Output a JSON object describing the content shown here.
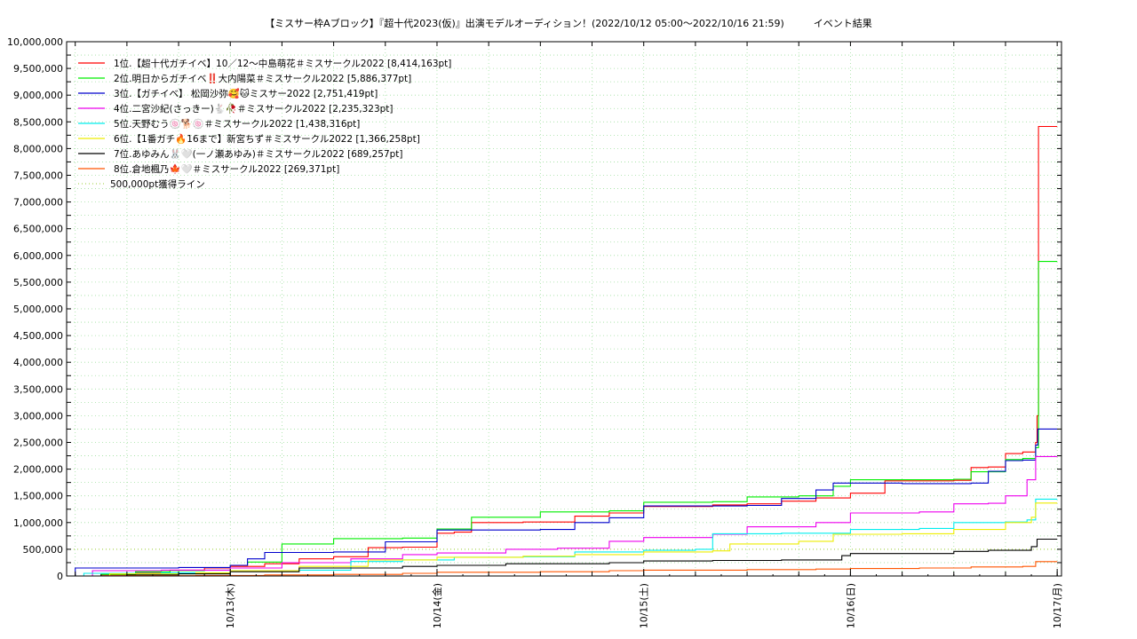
{
  "chart_data": {
    "type": "line",
    "title": "【ミスサー枠Aブロック】『超十代2023(仮)』出演モデルオーディション！(2022/10/12 05:00〜2022/10/16 21:59)　　　イベント結果",
    "xlabel": "",
    "ylabel": "",
    "grid": true,
    "legend_position": "top-left",
    "xlim": [
      "2022-10-12 05:00",
      "2022-10-17 00:30"
    ],
    "ylim": [
      0,
      10000000
    ],
    "x_ticks": [
      "10/13(木)",
      "10/14(金)",
      "10/15(土)",
      "10/16(日)",
      "10/17(月)"
    ],
    "y_ticks": [
      "0",
      "500,000",
      "1,000,000",
      "1,500,000",
      "2,000,000",
      "2,500,000",
      "3,000,000",
      "3,500,000",
      "4,000,000",
      "4,500,000",
      "5,000,000",
      "5,500,000",
      "6,000,000",
      "6,500,000",
      "7,000,000",
      "7,500,000",
      "8,000,000",
      "8,500,000",
      "9,000,000",
      "9,500,000",
      "10,000,000"
    ],
    "series": [
      {
        "name": "1位.【超十代ガチイベ】10／12〜中島萌花＃ミスサークル2022 [8,414,163pt]",
        "color": "#ff0000",
        "points": [
          [
            "10/12 05:00",
            0
          ],
          [
            "10/12 09:00",
            20000
          ],
          [
            "10/12 13:00",
            60000
          ],
          [
            "10/12 17:00",
            110000
          ],
          [
            "10/12 21:00",
            150000
          ],
          [
            "10/13 00:00",
            180000
          ],
          [
            "10/13 04:00",
            230000
          ],
          [
            "10/13 08:00",
            320000
          ],
          [
            "10/13 12:00",
            360000
          ],
          [
            "10/13 16:00",
            530000
          ],
          [
            "10/13 20:00",
            540000
          ],
          [
            "10/14 00:00",
            800000
          ],
          [
            "10/14 02:00",
            820000
          ],
          [
            "10/14 04:00",
            1000000
          ],
          [
            "10/14 10:00",
            1010000
          ],
          [
            "10/14 16:00",
            1120000
          ],
          [
            "10/14 20:00",
            1180000
          ],
          [
            "10/15 00:00",
            1300000
          ],
          [
            "10/15 08:00",
            1330000
          ],
          [
            "10/15 12:00",
            1350000
          ],
          [
            "10/15 16:00",
            1400000
          ],
          [
            "10/15 20:00",
            1460000
          ],
          [
            "10/16 00:00",
            1550000
          ],
          [
            "10/16 04:00",
            1780000
          ],
          [
            "10/16 12:00",
            1790000
          ],
          [
            "10/16 14:00",
            2030000
          ],
          [
            "10/16 16:00",
            2040000
          ],
          [
            "10/16 18:00",
            2290000
          ],
          [
            "10/16 20:00",
            2320000
          ],
          [
            "10/16 21:30",
            2500000
          ],
          [
            "10/16 21:40",
            3000000
          ],
          [
            "10/16 21:50",
            8414163
          ],
          [
            "10/17 00:00",
            8414163
          ]
        ]
      },
      {
        "name": "2位.明日からガチイベ‼️大内陽菜＃ミスサークル2022 [5,886,377pt]",
        "color": "#00ee00",
        "points": [
          [
            "10/12 05:00",
            0
          ],
          [
            "10/12 09:00",
            30000
          ],
          [
            "10/12 13:00",
            80000
          ],
          [
            "10/12 17:00",
            100000
          ],
          [
            "10/12 21:00",
            110000
          ],
          [
            "10/13 00:00",
            200000
          ],
          [
            "10/13 02:00",
            260000
          ],
          [
            "10/13 06:00",
            600000
          ],
          [
            "10/13 12:00",
            700000
          ],
          [
            "10/13 20:00",
            710000
          ],
          [
            "10/14 00:00",
            880000
          ],
          [
            "10/14 04:00",
            1100000
          ],
          [
            "10/14 12:00",
            1200000
          ],
          [
            "10/14 20:00",
            1220000
          ],
          [
            "10/15 00:00",
            1380000
          ],
          [
            "10/15 08:00",
            1390000
          ],
          [
            "10/15 12:00",
            1480000
          ],
          [
            "10/15 18:00",
            1500000
          ],
          [
            "10/15 22:00",
            1680000
          ],
          [
            "10/16 00:00",
            1800000
          ],
          [
            "10/16 12:00",
            1810000
          ],
          [
            "10/16 14:00",
            1950000
          ],
          [
            "10/16 18:00",
            2180000
          ],
          [
            "10/16 20:00",
            2200000
          ],
          [
            "10/16 21:30",
            2400000
          ],
          [
            "10/16 21:50",
            5886377
          ],
          [
            "10/17 00:00",
            5886377
          ]
        ]
      },
      {
        "name": "3位.【ガチイベ】 松岡沙弥🥰🐱ミスサー2022 [2,751,419pt]",
        "color": "#0000cc",
        "points": [
          [
            "10/12 05:00",
            0
          ],
          [
            "10/12 06:00",
            150000
          ],
          [
            "10/12 12:00",
            150000
          ],
          [
            "10/12 18:00",
            160000
          ],
          [
            "10/13 00:00",
            200000
          ],
          [
            "10/13 02:00",
            320000
          ],
          [
            "10/13 04:00",
            440000
          ],
          [
            "10/13 12:00",
            450000
          ],
          [
            "10/13 18:00",
            640000
          ],
          [
            "10/14 00:00",
            860000
          ],
          [
            "10/14 12:00",
            870000
          ],
          [
            "10/14 16:00",
            1000000
          ],
          [
            "10/14 20:00",
            1090000
          ],
          [
            "10/15 00:00",
            1310000
          ],
          [
            "10/15 12:00",
            1320000
          ],
          [
            "10/15 16:00",
            1450000
          ],
          [
            "10/15 20:00",
            1610000
          ],
          [
            "10/15 22:00",
            1740000
          ],
          [
            "10/16 06:00",
            1730000
          ],
          [
            "10/16 14:00",
            1740000
          ],
          [
            "10/16 16:00",
            1960000
          ],
          [
            "10/16 18:00",
            2160000
          ],
          [
            "10/16 20:00",
            2170000
          ],
          [
            "10/16 21:30",
            2450000
          ],
          [
            "10/16 21:45",
            2751419
          ],
          [
            "10/17 00:00",
            2751419
          ]
        ]
      },
      {
        "name": "4位.二宮沙紀(さっきー)🐇🥀＃ミスサークル2022 [2,235,323pt]",
        "color": "#ee00ee",
        "points": [
          [
            "10/12 05:00",
            0
          ],
          [
            "10/12 08:00",
            100000
          ],
          [
            "10/12 16:00",
            110000
          ],
          [
            "10/13 00:00",
            150000
          ],
          [
            "10/13 06:00",
            250000
          ],
          [
            "10/13 14:00",
            320000
          ],
          [
            "10/13 20:00",
            400000
          ],
          [
            "10/14 00:00",
            430000
          ],
          [
            "10/14 08:00",
            500000
          ],
          [
            "10/14 14:00",
            520000
          ],
          [
            "10/14 20:00",
            650000
          ],
          [
            "10/15 00:00",
            720000
          ],
          [
            "10/15 08:00",
            780000
          ],
          [
            "10/15 12:00",
            920000
          ],
          [
            "10/15 20:00",
            1000000
          ],
          [
            "10/16 00:00",
            1180000
          ],
          [
            "10/16 08:00",
            1200000
          ],
          [
            "10/16 12:00",
            1350000
          ],
          [
            "10/16 16:00",
            1360000
          ],
          [
            "10/16 18:00",
            1500000
          ],
          [
            "10/16 20:30",
            1800000
          ],
          [
            "10/16 21:30",
            2235323
          ],
          [
            "10/17 00:00",
            2235323
          ]
        ]
      },
      {
        "name": "5位.天野むう🍥🐕🍥＃ミスサークル2022 [1,438,316pt]",
        "color": "#00eeee",
        "points": [
          [
            "10/12 05:00",
            0
          ],
          [
            "10/12 07:00",
            50000
          ],
          [
            "10/12 16:00",
            60000
          ],
          [
            "10/13 00:00",
            100000
          ],
          [
            "10/13 08:00",
            110000
          ],
          [
            "10/13 14:00",
            270000
          ],
          [
            "10/13 20:00",
            300000
          ],
          [
            "10/14 02:00",
            350000
          ],
          [
            "10/14 10:00",
            360000
          ],
          [
            "10/14 16:00",
            450000
          ],
          [
            "10/15 00:00",
            480000
          ],
          [
            "10/15 06:00",
            500000
          ],
          [
            "10/15 08:00",
            790000
          ],
          [
            "10/15 16:00",
            800000
          ],
          [
            "10/16 00:00",
            870000
          ],
          [
            "10/16 08:00",
            890000
          ],
          [
            "10/16 12:00",
            1000000
          ],
          [
            "10/16 18:00",
            1010000
          ],
          [
            "10/16 20:30",
            1050000
          ],
          [
            "10/16 21:30",
            1438316
          ],
          [
            "10/17 00:00",
            1438316
          ]
        ]
      },
      {
        "name": "6位.【1番ガチ🔥16まで】新宮ちず＃ミスサークル2022 [1,366,258pt]",
        "color": "#eeee00",
        "points": [
          [
            "10/12 05:00",
            0
          ],
          [
            "10/12 10:00",
            40000
          ],
          [
            "10/12 20:00",
            60000
          ],
          [
            "10/13 00:00",
            100000
          ],
          [
            "10/13 08:00",
            180000
          ],
          [
            "10/13 16:00",
            300000
          ],
          [
            "10/14 00:00",
            350000
          ],
          [
            "10/14 10:00",
            370000
          ],
          [
            "10/14 16:00",
            400000
          ],
          [
            "10/15 00:00",
            450000
          ],
          [
            "10/15 08:00",
            470000
          ],
          [
            "10/15 10:00",
            600000
          ],
          [
            "10/15 18:00",
            650000
          ],
          [
            "10/15 22:00",
            780000
          ],
          [
            "10/16 06:00",
            790000
          ],
          [
            "10/16 12:00",
            870000
          ],
          [
            "10/16 18:00",
            1000000
          ],
          [
            "10/16 21:00",
            1100000
          ],
          [
            "10/16 21:30",
            1366258
          ],
          [
            "10/17 00:00",
            1366258
          ]
        ]
      },
      {
        "name": "7位.あゆみん🐰🤍(一ノ瀬あゆみ)＃ミスサークル2022 [689,257pt]",
        "color": "#000000",
        "points": [
          [
            "10/12 05:00",
            0
          ],
          [
            "10/12 12:00",
            20000
          ],
          [
            "10/12 18:00",
            40000
          ],
          [
            "10/13 00:00",
            80000
          ],
          [
            "10/13 08:00",
            150000
          ],
          [
            "10/13 20:00",
            180000
          ],
          [
            "10/14 00:00",
            200000
          ],
          [
            "10/14 08:00",
            230000
          ],
          [
            "10/14 20:00",
            250000
          ],
          [
            "10/15 00:00",
            280000
          ],
          [
            "10/15 08:00",
            290000
          ],
          [
            "10/15 16:00",
            300000
          ],
          [
            "10/15 23:00",
            380000
          ],
          [
            "10/16 00:00",
            420000
          ],
          [
            "10/16 12:00",
            460000
          ],
          [
            "10/16 16:00",
            480000
          ],
          [
            "10/16 21:00",
            550000
          ],
          [
            "10/16 21:40",
            689257
          ],
          [
            "10/17 00:00",
            689257
          ]
        ]
      },
      {
        "name": "8位.倉地楓乃🍁🤍＃ミスサークル2022 [269,371pt]",
        "color": "#ff5500",
        "points": [
          [
            "10/12 05:00",
            0
          ],
          [
            "10/12 12:00",
            5000
          ],
          [
            "10/12 20:00",
            10000
          ],
          [
            "10/13 04:00",
            20000
          ],
          [
            "10/13 12:00",
            30000
          ],
          [
            "10/13 20:00",
            50000
          ],
          [
            "10/14 00:00",
            70000
          ],
          [
            "10/14 12:00",
            80000
          ],
          [
            "10/14 20:00",
            100000
          ],
          [
            "10/15 00:00",
            110000
          ],
          [
            "10/15 12:00",
            120000
          ],
          [
            "10/15 20:00",
            130000
          ],
          [
            "10/16 00:00",
            140000
          ],
          [
            "10/16 08:00",
            150000
          ],
          [
            "10/16 14:00",
            170000
          ],
          [
            "10/16 20:00",
            180000
          ],
          [
            "10/16 21:30",
            269371
          ],
          [
            "10/17 00:00",
            269371
          ]
        ]
      }
    ],
    "reference_line": {
      "name": "500,000pt獲得ライン",
      "value": 500000,
      "color": "#9acd32"
    }
  }
}
